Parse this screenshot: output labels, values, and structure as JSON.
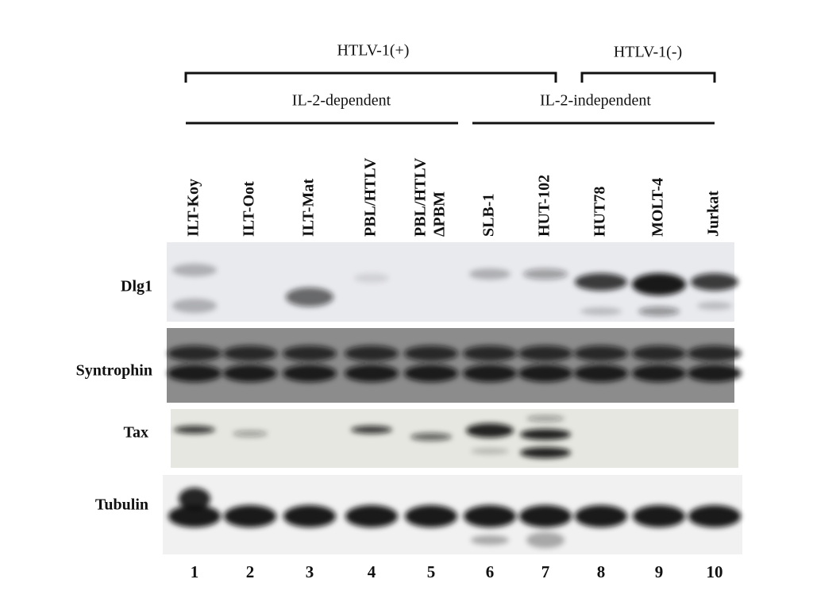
{
  "groups": {
    "virus": [
      "HTLV-1(+)",
      "HTLV-1(-)"
    ],
    "il2": [
      "IL-2-dependent",
      "IL-2-independent"
    ]
  },
  "lanes": [
    {
      "name": "ILT-Koy",
      "number": "1"
    },
    {
      "name": "ILT-Oot",
      "number": "2"
    },
    {
      "name": "ILT-Mat",
      "number": "3"
    },
    {
      "name": "PBL/HTLV",
      "number": "4"
    },
    {
      "name": "PBL/HTLV",
      "name2": "ΔPBM",
      "number": "5"
    },
    {
      "name": "SLB-1",
      "number": "6"
    },
    {
      "name": "HUT-102",
      "number": "7"
    },
    {
      "name": "HUT78",
      "number": "8"
    },
    {
      "name": "MOLT-4",
      "number": "9"
    },
    {
      "name": "Jurkat",
      "number": "10"
    }
  ],
  "rows": [
    "Dlg1",
    "Syntrophin",
    "Tax",
    "Tubulin"
  ]
}
